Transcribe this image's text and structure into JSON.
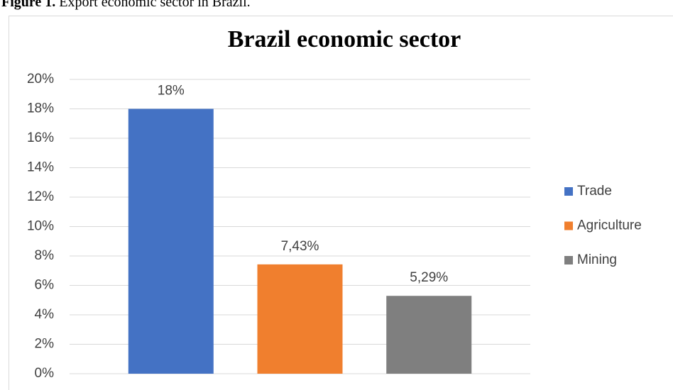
{
  "caption_label": "Figure 1.",
  "caption": "Export economic sector in Brazil.",
  "chart_data": {
    "type": "bar",
    "title": "Brazil economic sector",
    "categories": [
      null
    ],
    "series": [
      {
        "name": "Trade",
        "color": "#4472c4",
        "values": [
          18
        ],
        "value_labels": [
          "18%"
        ]
      },
      {
        "name": "Agriculture",
        "color": "#f07f2e",
        "values": [
          7.43
        ],
        "value_labels": [
          "7,43%"
        ]
      },
      {
        "name": "Mining",
        "color": "#7f7f7f",
        "values": [
          5.29
        ],
        "value_labels": [
          "5,29%"
        ]
      }
    ],
    "ylim": [
      0,
      20
    ],
    "yticks": [
      {
        "value": 0,
        "label": "0%"
      },
      {
        "value": 2,
        "label": "2%"
      },
      {
        "value": 4,
        "label": "4%"
      },
      {
        "value": 6,
        "label": "6%"
      },
      {
        "value": 8,
        "label": "8%"
      },
      {
        "value": 10,
        "label": "10%"
      },
      {
        "value": 12,
        "label": "12%"
      },
      {
        "value": 14,
        "label": "14%"
      },
      {
        "value": 16,
        "label": "16%"
      },
      {
        "value": 18,
        "label": "18%"
      },
      {
        "value": 20,
        "label": "20%"
      }
    ],
    "grid": true,
    "legend": "right"
  }
}
